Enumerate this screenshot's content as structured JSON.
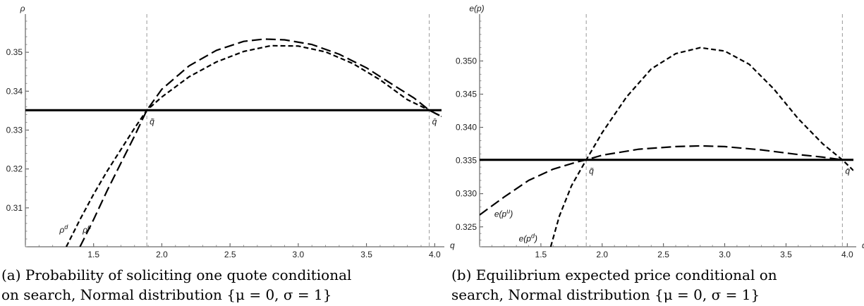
{
  "chart_data": [
    {
      "type": "line",
      "xlabel": "q",
      "ylabel": "ρ",
      "xlim": [
        1.0,
        4.05
      ],
      "ylim": [
        0.3,
        0.358
      ],
      "x_ticks": [
        "1.5",
        "2.0",
        "2.5",
        "3.0",
        "3.5",
        "4.0"
      ],
      "y_ticks": [
        "0.31",
        "0.32",
        "0.33",
        "0.34",
        "0.35"
      ],
      "grid": false,
      "hline": 0.3351,
      "vlines": [
        1.89,
        3.96
      ],
      "vline_labels": [
        "q̃",
        "q̄"
      ],
      "series": [
        {
          "name": "ρ^u",
          "style": "long-dash",
          "x": [
            1.4,
            1.5,
            1.6,
            1.7,
            1.8,
            1.89,
            2.0,
            2.2,
            2.4,
            2.6,
            2.75,
            2.9,
            3.1,
            3.3,
            3.5,
            3.7,
            3.85,
            3.96,
            4.05
          ],
          "y": [
            0.3,
            0.307,
            0.3145,
            0.3215,
            0.3285,
            0.3351,
            0.3405,
            0.3465,
            0.3505,
            0.3528,
            0.3534,
            0.3532,
            0.352,
            0.3495,
            0.346,
            0.3415,
            0.3382,
            0.3351,
            0.3335
          ]
        },
        {
          "name": "ρ^d",
          "style": "short-dash",
          "x": [
            1.3,
            1.4,
            1.5,
            1.6,
            1.7,
            1.8,
            1.89,
            2.0,
            2.2,
            2.4,
            2.6,
            2.8,
            3.0,
            3.2,
            3.4,
            3.6,
            3.8,
            3.96,
            4.05
          ],
          "y": [
            0.3,
            0.307,
            0.3135,
            0.3195,
            0.325,
            0.3305,
            0.3351,
            0.3385,
            0.3437,
            0.3475,
            0.3502,
            0.3517,
            0.3516,
            0.3501,
            0.3471,
            0.3429,
            0.3378,
            0.3351,
            0.3335
          ]
        },
        {
          "name": "",
          "style": "solid-thick",
          "x": [
            1.0,
            4.05
          ],
          "y": [
            0.3351,
            0.3351
          ]
        }
      ],
      "annotations": [
        {
          "text": "ρ",
          "sup": "d",
          "x": 1.25,
          "y": 0.3036
        },
        {
          "text": "ρ",
          "sup": "u",
          "x": 1.42,
          "y": 0.3036
        }
      ]
    },
    {
      "type": "line",
      "xlabel": "q",
      "ylabel": "e(p)",
      "xlim": [
        1.0,
        4.05
      ],
      "ylim": [
        0.322,
        0.356
      ],
      "x_ticks": [
        "1.5",
        "2.0",
        "2.5",
        "3.0",
        "3.5",
        "4.0"
      ],
      "y_ticks": [
        "0.325",
        "0.330",
        "0.335",
        "0.340",
        "0.345",
        "0.350"
      ],
      "grid": false,
      "hline": 0.3351,
      "vlines": [
        1.87,
        3.96
      ],
      "vline_labels": [
        "q̃",
        "q̄"
      ],
      "series": [
        {
          "name": "e(p^u)",
          "style": "long-dash",
          "x": [
            1.0,
            1.2,
            1.4,
            1.6,
            1.8,
            1.87,
            2.0,
            2.3,
            2.6,
            2.8,
            3.0,
            3.3,
            3.6,
            3.8,
            3.96
          ],
          "y": [
            0.3268,
            0.3295,
            0.332,
            0.3337,
            0.3348,
            0.3351,
            0.3358,
            0.3367,
            0.3371,
            0.3372,
            0.3371,
            0.3366,
            0.3359,
            0.3355,
            0.3351
          ]
        },
        {
          "name": "e(p^d)",
          "style": "short-dash",
          "x": [
            1.58,
            1.65,
            1.75,
            1.87,
            2.0,
            2.2,
            2.4,
            2.6,
            2.8,
            3.0,
            3.2,
            3.4,
            3.6,
            3.8,
            3.96,
            4.05
          ],
          "y": [
            0.322,
            0.3266,
            0.3312,
            0.3351,
            0.3392,
            0.3446,
            0.3488,
            0.3511,
            0.352,
            0.3515,
            0.3495,
            0.3458,
            0.3413,
            0.3375,
            0.3351,
            0.3335
          ]
        },
        {
          "name": "",
          "style": "solid-thick",
          "x": [
            1.0,
            4.05
          ],
          "y": [
            0.3351,
            0.3351
          ]
        }
      ],
      "annotations": [
        {
          "text": "e(p",
          "sup": "u",
          "tail": ")",
          "x": 1.12,
          "y": 0.3265
        },
        {
          "text": "e(p",
          "sup": "d",
          "tail": ")",
          "x": 1.32,
          "y": 0.3228
        }
      ]
    }
  ],
  "captions": [
    {
      "line1": "(a) Probability of soliciting one quote conditional",
      "line2": "on search, Normal distribution {μ = 0, σ = 1}"
    },
    {
      "line1": "(b)  Equilibrium expected price conditional on",
      "line2": "search, Normal distribution {μ = 0, σ = 1}"
    }
  ]
}
